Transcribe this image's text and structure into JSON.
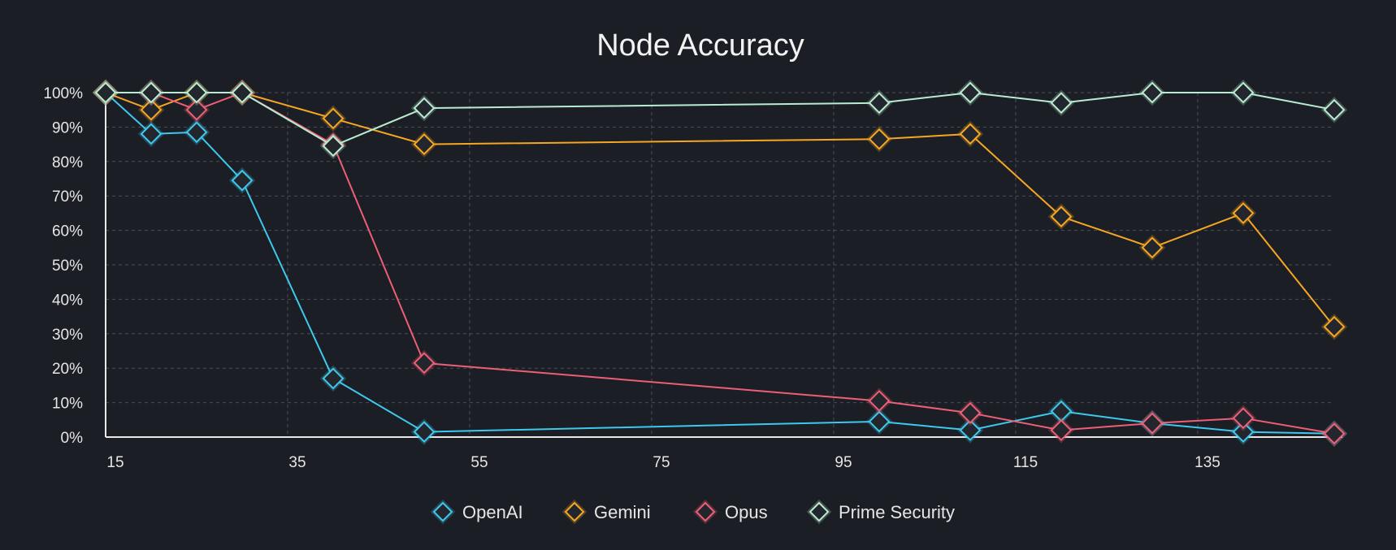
{
  "chart_data": {
    "type": "line",
    "title": "Node Accuracy",
    "xlabel": "",
    "ylabel": "",
    "xlim": [
      15,
      150
    ],
    "ylim": [
      0,
      100
    ],
    "x_ticks": [
      15,
      35,
      55,
      75,
      95,
      115,
      135
    ],
    "y_ticks": [
      0,
      10,
      20,
      30,
      40,
      50,
      60,
      70,
      80,
      90,
      100
    ],
    "y_tick_suffix": "%",
    "grid": true,
    "legend_position": "bottom-center",
    "x": [
      15,
      20,
      25,
      30,
      40,
      50,
      100,
      110,
      120,
      130,
      140,
      150
    ],
    "series": [
      {
        "name": "OpenAI",
        "color": "#3ec8ec",
        "x": [
          15,
          20,
          25,
          30,
          40,
          50,
          100,
          110,
          120,
          130,
          140,
          150
        ],
        "values": [
          100,
          88,
          88.5,
          74.5,
          17,
          1.5,
          4.5,
          2,
          7.5,
          4,
          1.5,
          1
        ]
      },
      {
        "name": "Gemini",
        "color": "#f5a623",
        "x": [
          15,
          20,
          25,
          30,
          40,
          50,
          100,
          110,
          120,
          130,
          140,
          150
        ],
        "values": [
          100,
          95,
          100,
          100,
          92.5,
          85,
          86.5,
          88,
          64,
          55,
          65,
          32
        ]
      },
      {
        "name": "Opus",
        "color": "#ec5f75",
        "x": [
          15,
          20,
          25,
          30,
          40,
          50,
          100,
          110,
          120,
          130,
          140,
          150
        ],
        "values": [
          100,
          100,
          95,
          100,
          85,
          21.5,
          10.5,
          7,
          2,
          4,
          5.5,
          1
        ]
      },
      {
        "name": "Prime Security",
        "color": "#b8ecd0",
        "x": [
          15,
          20,
          25,
          30,
          40,
          50,
          100,
          110,
          120,
          130,
          140,
          150
        ],
        "values": [
          100,
          100,
          100,
          100,
          84.5,
          95.5,
          97,
          100,
          97,
          100,
          100,
          95
        ]
      }
    ]
  }
}
